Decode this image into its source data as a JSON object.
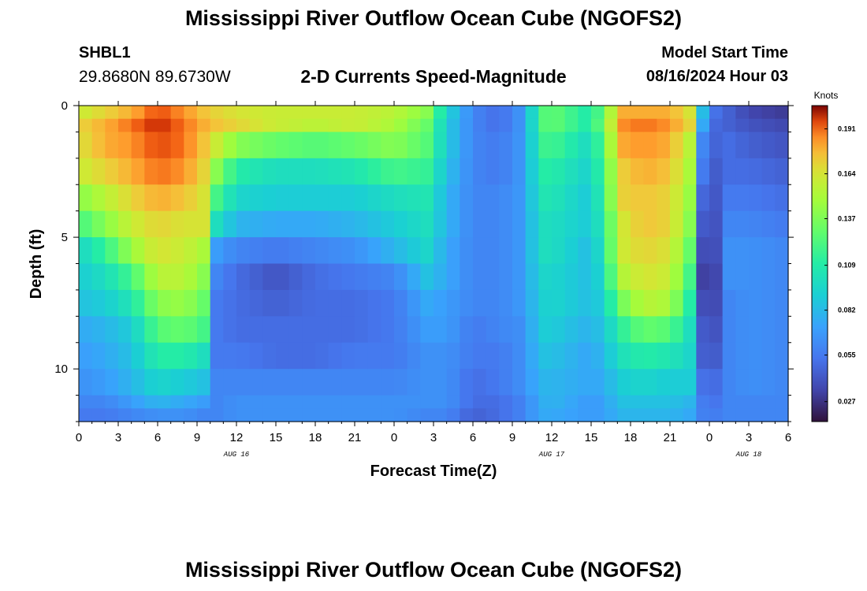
{
  "page": {
    "title": "Mississippi River Outflow Ocean Cube (NGOFS2)",
    "title_repeat": "Mississippi River Outflow Ocean Cube (NGOFS2)"
  },
  "station": {
    "id": "SHBL1",
    "coords": "29.8680N  89.6730W"
  },
  "plot_title": "2-D Currents Speed-Magnitude",
  "model_start": {
    "label": "Model Start Time",
    "value": "08/16/2024 Hour 03"
  },
  "chart_data": {
    "type": "heatmap",
    "title": "2-D Currents Speed-Magnitude",
    "xlabel": "Forecast Time(Z)",
    "ylabel": "Depth (ft)",
    "x_hours_range": [
      0,
      54
    ],
    "y_depth_range": [
      0,
      12
    ],
    "x_tick_labels": [
      "0",
      "3",
      "6",
      "9",
      "12",
      "15",
      "18",
      "21",
      "0",
      "3",
      "6",
      "9",
      "12",
      "15",
      "18",
      "21",
      "0",
      "3",
      "6"
    ],
    "x_tick_hours": [
      0,
      3,
      6,
      9,
      12,
      15,
      18,
      21,
      24,
      27,
      30,
      33,
      36,
      39,
      42,
      45,
      48,
      51,
      54
    ],
    "day_labels": [
      {
        "label": "AUG 16",
        "hour": 12
      },
      {
        "label": "AUG 17",
        "hour": 36
      },
      {
        "label": "AUG 18",
        "hour": 51
      }
    ],
    "y_tick_labels": [
      "0",
      "5",
      "10"
    ],
    "y_tick_values": [
      0,
      5,
      10
    ],
    "colorbar": {
      "units": "Knots",
      "min": 0.015,
      "max": 0.205,
      "tick_labels": [
        "0.191",
        "0.164",
        "0.137",
        "0.109",
        "0.082",
        "0.055",
        "0.027"
      ],
      "tick_values": [
        0.191,
        0.164,
        0.137,
        0.109,
        0.082,
        0.055,
        0.027
      ]
    },
    "depth_levels": [
      0.25,
      0.75,
      1.5,
      2.5,
      3.5,
      4.5,
      5.5,
      6.5,
      7.5,
      8.5,
      9.5,
      10.5,
      11.25,
      11.75
    ],
    "speed_profiles": [
      {
        "hour": 0,
        "speeds": [
          0.16,
          0.17,
          0.165,
          0.16,
          0.14,
          0.12,
          0.095,
          0.09,
          0.085,
          0.075,
          0.07,
          0.065,
          0.06,
          0.055
        ]
      },
      {
        "hour": 2,
        "speeds": [
          0.17,
          0.18,
          0.18,
          0.17,
          0.155,
          0.14,
          0.115,
          0.1,
          0.09,
          0.08,
          0.075,
          0.07,
          0.06,
          0.055
        ]
      },
      {
        "hour": 4,
        "speeds": [
          0.18,
          0.19,
          0.185,
          0.18,
          0.17,
          0.16,
          0.145,
          0.12,
          0.105,
          0.09,
          0.085,
          0.08,
          0.07,
          0.06
        ]
      },
      {
        "hour": 6,
        "speeds": [
          0.195,
          0.2,
          0.195,
          0.19,
          0.18,
          0.17,
          0.165,
          0.155,
          0.14,
          0.125,
          0.11,
          0.095,
          0.08,
          0.065
        ]
      },
      {
        "hour": 8,
        "speeds": [
          0.185,
          0.19,
          0.19,
          0.185,
          0.175,
          0.165,
          0.16,
          0.155,
          0.145,
          0.13,
          0.11,
          0.09,
          0.075,
          0.065
        ]
      },
      {
        "hour": 9.5,
        "speeds": [
          0.175,
          0.18,
          0.175,
          0.17,
          0.165,
          0.165,
          0.15,
          0.14,
          0.13,
          0.12,
          0.1,
          0.085,
          0.07,
          0.06
        ]
      },
      {
        "hour": 10.5,
        "speeds": [
          0.17,
          0.175,
          0.16,
          0.14,
          0.12,
          0.1,
          0.07,
          0.06,
          0.055,
          0.055,
          0.055,
          0.06,
          0.06,
          0.06
        ]
      },
      {
        "hour": 12,
        "speeds": [
          0.165,
          0.17,
          0.14,
          0.11,
          0.095,
          0.08,
          0.06,
          0.05,
          0.05,
          0.05,
          0.055,
          0.06,
          0.065,
          0.065
        ]
      },
      {
        "hour": 15,
        "speeds": [
          0.16,
          0.16,
          0.13,
          0.1,
          0.09,
          0.075,
          0.055,
          0.04,
          0.045,
          0.05,
          0.05,
          0.06,
          0.065,
          0.065
        ]
      },
      {
        "hour": 18,
        "speeds": [
          0.16,
          0.155,
          0.125,
          0.1,
          0.09,
          0.075,
          0.06,
          0.05,
          0.05,
          0.05,
          0.05,
          0.06,
          0.065,
          0.065
        ]
      },
      {
        "hour": 21,
        "speeds": [
          0.16,
          0.16,
          0.13,
          0.105,
          0.09,
          0.08,
          0.065,
          0.055,
          0.05,
          0.05,
          0.055,
          0.06,
          0.065,
          0.065
        ]
      },
      {
        "hour": 24,
        "speeds": [
          0.155,
          0.15,
          0.14,
          0.12,
          0.1,
          0.09,
          0.08,
          0.06,
          0.055,
          0.055,
          0.055,
          0.06,
          0.065,
          0.065
        ]
      },
      {
        "hour": 26.5,
        "speeds": [
          0.14,
          0.13,
          0.125,
          0.115,
          0.105,
          0.1,
          0.095,
          0.085,
          0.075,
          0.07,
          0.065,
          0.065,
          0.065,
          0.06
        ]
      },
      {
        "hour": 28,
        "speeds": [
          0.095,
          0.09,
          0.09,
          0.085,
          0.08,
          0.08,
          0.075,
          0.075,
          0.07,
          0.07,
          0.065,
          0.065,
          0.065,
          0.06
        ]
      },
      {
        "hour": 30,
        "speeds": [
          0.06,
          0.06,
          0.06,
          0.06,
          0.06,
          0.06,
          0.06,
          0.06,
          0.06,
          0.055,
          0.055,
          0.05,
          0.05,
          0.045
        ]
      },
      {
        "hour": 32,
        "speeds": [
          0.05,
          0.05,
          0.055,
          0.055,
          0.06,
          0.06,
          0.06,
          0.06,
          0.06,
          0.06,
          0.055,
          0.055,
          0.05,
          0.05
        ]
      },
      {
        "hour": 34,
        "speeds": [
          0.07,
          0.07,
          0.07,
          0.07,
          0.07,
          0.07,
          0.07,
          0.07,
          0.07,
          0.065,
          0.065,
          0.065,
          0.06,
          0.06
        ]
      },
      {
        "hour": 35,
        "speeds": [
          0.12,
          0.12,
          0.115,
          0.11,
          0.105,
          0.1,
          0.1,
          0.095,
          0.09,
          0.09,
          0.085,
          0.08,
          0.075,
          0.075
        ]
      },
      {
        "hour": 36,
        "speeds": [
          0.13,
          0.13,
          0.12,
          0.11,
          0.105,
          0.1,
          0.1,
          0.095,
          0.095,
          0.09,
          0.085,
          0.08,
          0.08,
          0.075
        ]
      },
      {
        "hour": 38.5,
        "speeds": [
          0.11,
          0.11,
          0.1,
          0.095,
          0.09,
          0.09,
          0.085,
          0.085,
          0.085,
          0.08,
          0.075,
          0.075,
          0.07,
          0.07
        ]
      },
      {
        "hour": 40,
        "speeds": [
          0.125,
          0.13,
          0.12,
          0.115,
          0.11,
          0.105,
          0.1,
          0.095,
          0.09,
          0.085,
          0.08,
          0.075,
          0.07,
          0.07
        ]
      },
      {
        "hour": 41,
        "speeds": [
          0.18,
          0.185,
          0.18,
          0.17,
          0.17,
          0.16,
          0.16,
          0.15,
          0.13,
          0.11,
          0.1,
          0.09,
          0.085,
          0.08
        ]
      },
      {
        "hour": 43,
        "speeds": [
          0.18,
          0.19,
          0.185,
          0.18,
          0.175,
          0.175,
          0.17,
          0.165,
          0.155,
          0.13,
          0.11,
          0.095,
          0.085,
          0.08
        ]
      },
      {
        "hour": 45,
        "speeds": [
          0.18,
          0.185,
          0.18,
          0.175,
          0.17,
          0.17,
          0.165,
          0.16,
          0.15,
          0.125,
          0.105,
          0.09,
          0.085,
          0.08
        ]
      },
      {
        "hour": 46.5,
        "speeds": [
          0.165,
          0.17,
          0.155,
          0.15,
          0.145,
          0.14,
          0.13,
          0.12,
          0.11,
          0.1,
          0.095,
          0.09,
          0.08,
          0.075
        ]
      },
      {
        "hour": 47.2,
        "speeds": [
          0.1,
          0.09,
          0.07,
          0.065,
          0.055,
          0.05,
          0.045,
          0.04,
          0.045,
          0.05,
          0.05,
          0.055,
          0.06,
          0.06
        ]
      },
      {
        "hour": 48,
        "speeds": [
          0.055,
          0.05,
          0.045,
          0.04,
          0.035,
          0.03,
          0.025,
          0.02,
          0.025,
          0.03,
          0.035,
          0.045,
          0.05,
          0.055
        ]
      },
      {
        "hour": 49.5,
        "speeds": [
          0.045,
          0.045,
          0.05,
          0.05,
          0.055,
          0.06,
          0.065,
          0.065,
          0.06,
          0.06,
          0.06,
          0.06,
          0.06,
          0.06
        ]
      },
      {
        "hour": 51,
        "speeds": [
          0.035,
          0.04,
          0.045,
          0.05,
          0.055,
          0.06,
          0.065,
          0.065,
          0.065,
          0.065,
          0.065,
          0.065,
          0.06,
          0.06
        ]
      },
      {
        "hour": 54,
        "speeds": [
          0.03,
          0.035,
          0.04,
          0.045,
          0.05,
          0.055,
          0.06,
          0.06,
          0.06,
          0.06,
          0.06,
          0.06,
          0.06,
          0.06
        ]
      }
    ]
  }
}
